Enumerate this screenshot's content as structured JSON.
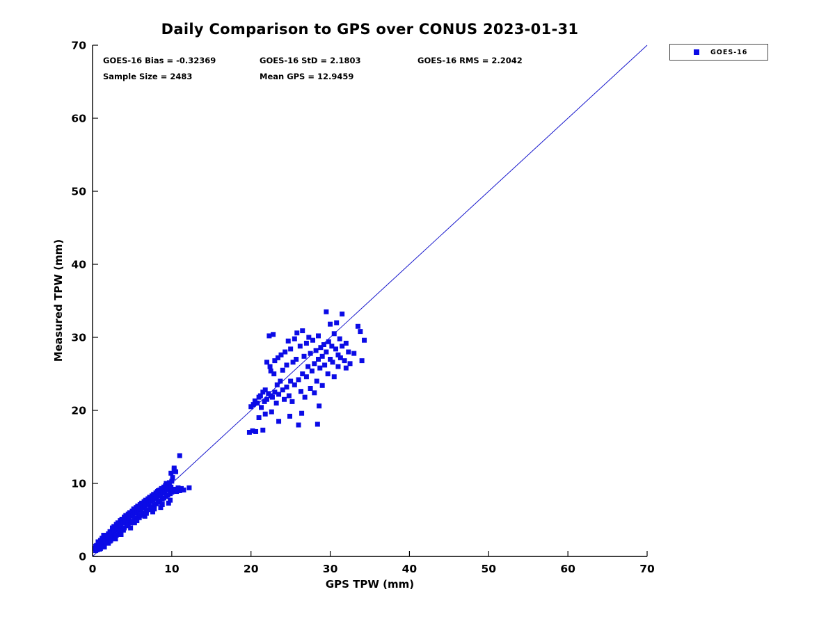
{
  "colors": {
    "marker": "#0B0BE6",
    "ref_line": "#1515CC",
    "axis": "#000000",
    "text": "#000000"
  },
  "stats": {
    "bias_label": "GOES-16 Bias = -0.32369",
    "std_label": "GOES-16 StD = 2.1803",
    "rms_label": "GOES-16 RMS = 2.2042",
    "sample_label": "Sample Size = 2483",
    "mean_label": "Mean GPS = 12.9459",
    "bias": -0.32369,
    "std": 2.1803,
    "rms": 2.2042,
    "sample_size": 2483,
    "mean_gps": 12.9459
  },
  "legend": {
    "position": "top-right-outside",
    "entries": [
      {
        "label": "GOES-16",
        "marker": "square",
        "color": "#0B0BE6"
      }
    ]
  },
  "chart_data": {
    "type": "scatter",
    "title": "Daily Comparison to GPS over CONUS 2023-01-31",
    "xlabel": "GPS TPW (mm)",
    "ylabel": "Measured TPW (mm)",
    "xlim": [
      0,
      70
    ],
    "ylim": [
      0,
      70
    ],
    "xticks": [
      0,
      10,
      20,
      30,
      40,
      50,
      60,
      70
    ],
    "yticks": [
      0,
      10,
      20,
      30,
      40,
      50,
      60,
      70
    ],
    "grid": false,
    "ref_line": {
      "from": [
        0,
        0
      ],
      "to": [
        70,
        70
      ],
      "color": "#1515CC",
      "width": 1
    },
    "series": [
      {
        "name": "GOES-16",
        "marker": "square",
        "color": "#0B0BE6",
        "marker_size": 7,
        "points": [
          [
            0.3,
            1.1
          ],
          [
            0.4,
            1.4
          ],
          [
            0.4,
            0.8
          ],
          [
            0.5,
            0.9
          ],
          [
            0.5,
            1.5
          ],
          [
            0.6,
            1.3
          ],
          [
            0.6,
            0.9
          ],
          [
            0.7,
            1.7
          ],
          [
            0.7,
            2.0
          ],
          [
            0.8,
            1.2
          ],
          [
            0.8,
            1.9
          ],
          [
            0.9,
            1.6
          ],
          [
            0.9,
            1.0
          ],
          [
            1.0,
            1.1
          ],
          [
            1.0,
            2.2
          ],
          [
            1.1,
            2.0
          ],
          [
            1.1,
            1.3
          ],
          [
            1.2,
            1.4
          ],
          [
            1.2,
            2.5
          ],
          [
            1.3,
            2.3
          ],
          [
            1.4,
            1.8
          ],
          [
            1.4,
            2.9
          ],
          [
            1.5,
            2.6
          ],
          [
            1.5,
            1.3
          ],
          [
            1.6,
            2.1
          ],
          [
            1.7,
            2.9
          ],
          [
            1.8,
            1.9
          ],
          [
            1.9,
            2.4
          ],
          [
            2.0,
            3.1
          ],
          [
            2.0,
            1.8
          ],
          [
            2.1,
            2.7
          ],
          [
            2.2,
            3.4
          ],
          [
            2.2,
            2.1
          ],
          [
            2.3,
            2.2
          ],
          [
            2.4,
            3.0
          ],
          [
            2.5,
            3.9
          ],
          [
            2.5,
            2.5
          ],
          [
            2.6,
            3.3
          ],
          [
            2.7,
            4.1
          ],
          [
            2.7,
            3.5
          ],
          [
            2.8,
            2.8
          ],
          [
            2.9,
            3.6
          ],
          [
            2.9,
            2.4
          ],
          [
            3.0,
            4.4
          ],
          [
            3.0,
            2.9
          ],
          [
            3.1,
            3.8
          ],
          [
            3.2,
            4.6
          ],
          [
            3.3,
            3.2
          ],
          [
            3.3,
            4.4
          ],
          [
            3.4,
            4.1
          ],
          [
            3.5,
            4.9
          ],
          [
            3.5,
            3.5
          ],
          [
            3.6,
            4.3
          ],
          [
            3.6,
            3.0
          ],
          [
            3.7,
            5.1
          ],
          [
            3.8,
            3.8
          ],
          [
            3.9,
            4.6
          ],
          [
            3.9,
            3.6
          ],
          [
            4.0,
            5.4
          ],
          [
            4.0,
            3.9
          ],
          [
            4.1,
            4.8
          ],
          [
            4.2,
            5.6
          ],
          [
            4.3,
            4.2
          ],
          [
            4.4,
            5.0
          ],
          [
            4.4,
            4.3
          ],
          [
            4.5,
            5.8
          ],
          [
            4.5,
            4.4
          ],
          [
            4.6,
            5.2
          ],
          [
            4.7,
            6.0
          ],
          [
            4.8,
            4.6
          ],
          [
            4.8,
            3.9
          ],
          [
            4.9,
            5.5
          ],
          [
            4.9,
            6.0
          ],
          [
            5.0,
            6.2
          ],
          [
            5.0,
            4.8
          ],
          [
            5.1,
            5.7
          ],
          [
            5.2,
            6.5
          ],
          [
            5.3,
            5.0
          ],
          [
            5.3,
            4.6
          ],
          [
            5.4,
            5.9
          ],
          [
            5.5,
            6.7
          ],
          [
            5.5,
            5.2
          ],
          [
            5.6,
            6.1
          ],
          [
            5.6,
            4.9
          ],
          [
            5.7,
            6.9
          ],
          [
            5.8,
            5.4
          ],
          [
            5.9,
            6.3
          ],
          [
            5.9,
            5.3
          ],
          [
            6.0,
            7.1
          ],
          [
            6.0,
            5.6
          ],
          [
            6.1,
            6.5
          ],
          [
            6.2,
            7.3
          ],
          [
            6.3,
            5.8
          ],
          [
            6.3,
            7.0
          ],
          [
            6.4,
            6.7
          ],
          [
            6.5,
            7.5
          ],
          [
            6.5,
            6.0
          ],
          [
            6.6,
            6.9
          ],
          [
            6.6,
            5.5
          ],
          [
            6.7,
            7.7
          ],
          [
            6.8,
            6.2
          ],
          [
            6.8,
            5.9
          ],
          [
            6.9,
            7.1
          ],
          [
            7.0,
            7.9
          ],
          [
            7.0,
            6.4
          ],
          [
            7.1,
            7.3
          ],
          [
            7.2,
            8.1
          ],
          [
            7.3,
            6.6
          ],
          [
            7.3,
            8.0
          ],
          [
            7.4,
            7.5
          ],
          [
            7.5,
            8.3
          ],
          [
            7.5,
            6.8
          ],
          [
            7.6,
            7.7
          ],
          [
            7.6,
            6.1
          ],
          [
            7.7,
            8.5
          ],
          [
            7.8,
            7.0
          ],
          [
            7.8,
            6.5
          ],
          [
            7.9,
            7.9
          ],
          [
            8.0,
            8.7
          ],
          [
            8.0,
            7.2
          ],
          [
            8.1,
            8.1
          ],
          [
            8.2,
            8.9
          ],
          [
            8.3,
            7.4
          ],
          [
            8.3,
            9.0
          ],
          [
            8.4,
            8.3
          ],
          [
            8.5,
            9.1
          ],
          [
            8.5,
            7.6
          ],
          [
            8.6,
            8.5
          ],
          [
            8.6,
            6.7
          ],
          [
            8.7,
            9.3
          ],
          [
            8.8,
            7.8
          ],
          [
            8.8,
            7.1
          ],
          [
            8.9,
            8.7
          ],
          [
            9.0,
            9.5
          ],
          [
            9.0,
            8.0
          ],
          [
            9.1,
            8.9
          ],
          [
            9.2,
            9.7
          ],
          [
            9.3,
            8.2
          ],
          [
            9.3,
            10.0
          ],
          [
            9.4,
            9.1
          ],
          [
            9.5,
            9.9
          ],
          [
            9.5,
            8.4
          ],
          [
            9.6,
            9.3
          ],
          [
            9.6,
            7.3
          ],
          [
            9.7,
            10.1
          ],
          [
            9.8,
            8.6
          ],
          [
            9.8,
            7.7
          ],
          [
            9.9,
            9.5
          ],
          [
            9.9,
            11.4
          ],
          [
            10.0,
            10.3
          ],
          [
            10.0,
            8.8
          ],
          [
            10.1,
            10.8
          ],
          [
            10.2,
            9.0
          ],
          [
            10.3,
            11.9
          ],
          [
            10.3,
            12.1
          ],
          [
            10.4,
            9.2
          ],
          [
            10.5,
            11.6
          ],
          [
            10.6,
            8.9
          ],
          [
            10.8,
            9.4
          ],
          [
            11.0,
            13.8
          ],
          [
            11.0,
            9.0
          ],
          [
            11.2,
            9.3
          ],
          [
            11.5,
            9.1
          ],
          [
            12.2,
            9.4
          ],
          [
            19.8,
            17.0
          ],
          [
            20.0,
            20.5
          ],
          [
            20.2,
            17.2
          ],
          [
            20.3,
            20.8
          ],
          [
            20.5,
            21.3
          ],
          [
            20.6,
            17.1
          ],
          [
            20.8,
            21.0
          ],
          [
            21.0,
            21.8
          ],
          [
            21.0,
            19.0
          ],
          [
            21.2,
            22.0
          ],
          [
            21.3,
            20.4
          ],
          [
            21.5,
            22.5
          ],
          [
            21.5,
            17.3
          ],
          [
            21.7,
            21.2
          ],
          [
            21.8,
            22.8
          ],
          [
            21.8,
            19.5
          ],
          [
            22.0,
            21.5
          ],
          [
            22.0,
            26.6
          ],
          [
            22.2,
            22.3
          ],
          [
            22.3,
            30.2
          ],
          [
            22.4,
            26.0
          ],
          [
            22.5,
            22.0
          ],
          [
            22.5,
            25.4
          ],
          [
            22.6,
            19.8
          ],
          [
            22.7,
            21.8
          ],
          [
            22.8,
            30.4
          ],
          [
            22.9,
            25.0
          ],
          [
            23.0,
            22.5
          ],
          [
            23.0,
            26.8
          ],
          [
            23.2,
            21.0
          ],
          [
            23.3,
            23.5
          ],
          [
            23.4,
            27.2
          ],
          [
            23.5,
            22.2
          ],
          [
            23.5,
            18.5
          ],
          [
            23.7,
            24.0
          ],
          [
            23.8,
            27.6
          ],
          [
            24.0,
            22.8
          ],
          [
            24.0,
            25.5
          ],
          [
            24.2,
            21.5
          ],
          [
            24.3,
            28.0
          ],
          [
            24.5,
            23.2
          ],
          [
            24.5,
            26.2
          ],
          [
            24.7,
            29.5
          ],
          [
            24.8,
            22.0
          ],
          [
            24.9,
            19.2
          ],
          [
            25.0,
            24.0
          ],
          [
            25.0,
            28.4
          ],
          [
            25.2,
            21.2
          ],
          [
            25.3,
            26.6
          ],
          [
            25.5,
            29.8
          ],
          [
            25.5,
            23.5
          ],
          [
            25.7,
            27.0
          ],
          [
            25.8,
            30.6
          ],
          [
            26.0,
            24.2
          ],
          [
            26.0,
            18.0
          ],
          [
            26.2,
            28.8
          ],
          [
            26.3,
            22.6
          ],
          [
            26.4,
            19.6
          ],
          [
            26.5,
            30.9
          ],
          [
            26.5,
            25.0
          ],
          [
            26.7,
            27.4
          ],
          [
            26.8,
            21.8
          ],
          [
            27.0,
            29.2
          ],
          [
            27.0,
            24.6
          ],
          [
            27.2,
            26.0
          ],
          [
            27.3,
            30.0
          ],
          [
            27.5,
            23.0
          ],
          [
            27.5,
            27.8
          ],
          [
            27.7,
            25.4
          ],
          [
            27.8,
            29.6
          ],
          [
            28.0,
            22.4
          ],
          [
            28.0,
            26.4
          ],
          [
            28.2,
            28.2
          ],
          [
            28.3,
            24.0
          ],
          [
            28.4,
            18.1
          ],
          [
            28.5,
            27.0
          ],
          [
            28.5,
            30.2
          ],
          [
            28.6,
            20.6
          ],
          [
            28.7,
            25.8
          ],
          [
            28.8,
            28.6
          ],
          [
            29.0,
            23.4
          ],
          [
            29.0,
            27.4
          ],
          [
            29.2,
            29.0
          ],
          [
            29.3,
            26.2
          ],
          [
            29.5,
            33.5
          ],
          [
            29.5,
            28.0
          ],
          [
            29.7,
            25.0
          ],
          [
            29.8,
            29.4
          ],
          [
            30.0,
            27.0
          ],
          [
            30.0,
            31.8
          ],
          [
            30.2,
            28.8
          ],
          [
            30.3,
            26.6
          ],
          [
            30.5,
            30.5
          ],
          [
            30.5,
            24.6
          ],
          [
            30.7,
            28.4
          ],
          [
            30.8,
            32.0
          ],
          [
            31.0,
            27.6
          ],
          [
            31.0,
            26.0
          ],
          [
            31.2,
            29.8
          ],
          [
            31.3,
            27.2
          ],
          [
            31.5,
            33.2
          ],
          [
            31.5,
            28.8
          ],
          [
            31.8,
            26.8
          ],
          [
            32.0,
            29.2
          ],
          [
            32.0,
            25.8
          ],
          [
            32.3,
            28.0
          ],
          [
            32.5,
            26.4
          ],
          [
            33.0,
            27.8
          ],
          [
            33.5,
            31.5
          ],
          [
            33.8,
            30.8
          ],
          [
            34.0,
            26.8
          ],
          [
            34.3,
            29.6
          ]
        ]
      }
    ]
  }
}
